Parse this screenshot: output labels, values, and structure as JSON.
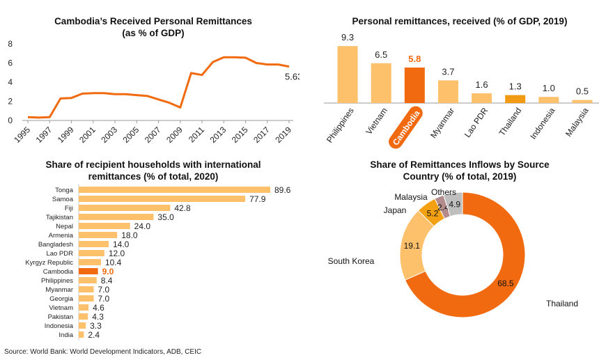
{
  "colors": {
    "accent": "#f26a10",
    "light": "#fdc06b",
    "thailand_bar": "#f39a14",
    "grey": "#bfbfbf",
    "mauve": "#b38b8b",
    "japan": "#f3a012"
  },
  "source": "Source: World Bank: World Development Indicators, ADB, CEIC",
  "chart_data": [
    {
      "id": "remit_line",
      "type": "line",
      "title": "Cambodia’s Received Personal Remittances\n(as % of GDP)",
      "x": [
        1995,
        1996,
        1997,
        1998,
        1999,
        2000,
        2001,
        2002,
        2003,
        2004,
        2005,
        2006,
        2007,
        2008,
        2009,
        2010,
        2011,
        2012,
        2013,
        2014,
        2015,
        2016,
        2017,
        2018,
        2019
      ],
      "values": [
        0.35,
        0.3,
        0.35,
        2.3,
        2.35,
        2.8,
        2.85,
        2.85,
        2.75,
        2.75,
        2.65,
        2.55,
        2.2,
        1.85,
        1.35,
        4.95,
        4.75,
        6.1,
        6.6,
        6.6,
        6.55,
        6.0,
        5.85,
        5.85,
        5.63
      ],
      "xticks": [
        1995,
        1997,
        1999,
        2001,
        2003,
        2005,
        2007,
        2009,
        2011,
        2013,
        2015,
        2017,
        2019
      ],
      "yticks": [
        0,
        2,
        4,
        6,
        8
      ],
      "ylim": [
        0,
        8
      ],
      "end_label": "5.63",
      "grid": false
    },
    {
      "id": "remit_bar",
      "type": "bar",
      "title": "Personal remittances, received (% of GDP, 2019)",
      "categories": [
        "Philippines",
        "Vietnam",
        "Cambodia",
        "Myanmar",
        "Lao PDR",
        "Thailand",
        "Indonesia",
        "Malaysia"
      ],
      "values": [
        9.3,
        6.5,
        5.8,
        3.7,
        1.6,
        1.3,
        1.0,
        0.5
      ],
      "labels": [
        "9.3",
        "6.5",
        "5.8",
        "3.7",
        "1.6",
        "1.3",
        "1.0",
        "0.5"
      ],
      "highlight": "Cambodia",
      "ylim": [
        0,
        10
      ]
    },
    {
      "id": "households_bar",
      "type": "bar",
      "orientation": "horizontal",
      "title": "Share of recipient households with international\nremittances (% of total, 2020)",
      "categories": [
        "Tonga",
        "Samoa",
        "Fiji",
        "Tajikistan",
        "Nepal",
        "Armenia",
        "Bangladesh",
        "Lao PDR",
        "Kyrgyz Republic",
        "Cambodia",
        "Philippines",
        "Myanmar",
        "Georgia",
        "Vietnam",
        "Pakistan",
        "Indonesia",
        "India"
      ],
      "values": [
        89.6,
        77.9,
        42.8,
        35.0,
        24.0,
        18.0,
        14.0,
        12.0,
        10.4,
        9.0,
        8.4,
        7.0,
        7.0,
        4.6,
        4.3,
        3.3,
        2.4
      ],
      "labels": [
        "89.6",
        "77.9",
        "42.8",
        "35.0",
        "24.0",
        "18.0",
        "14.0",
        "12.0",
        "10.4",
        "9.0",
        "8.4",
        "7.0",
        "7.0",
        "4.6",
        "4.3",
        "3.3",
        "2.4"
      ],
      "highlight": "Cambodia",
      "xlim": [
        0,
        100
      ]
    },
    {
      "id": "source_donut",
      "type": "pie",
      "title": "Share of Remittances Inflows by Source\nCountry (% of total, 2019)",
      "slices": [
        {
          "name": "Thailand",
          "value": 68.5,
          "label": "68.5",
          "color": "#f26a10"
        },
        {
          "name": "South Korea",
          "value": 19.1,
          "label": "19.1",
          "color": "#fdc06b"
        },
        {
          "name": "Japan",
          "value": 5.2,
          "label": "5.2",
          "color": "#f3a012"
        },
        {
          "name": "Malaysia",
          "value": 2.4,
          "label": "2.4",
          "color": "#b38b8b"
        },
        {
          "name": "Others",
          "value": 4.9,
          "label": "4.9",
          "color": "#bfbfbf"
        }
      ]
    }
  ]
}
